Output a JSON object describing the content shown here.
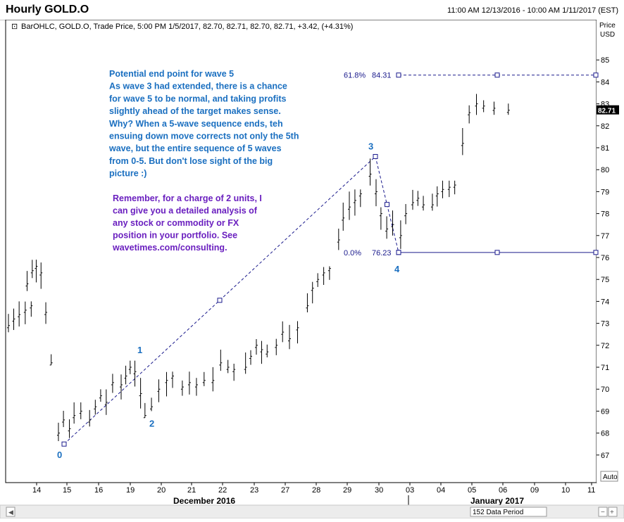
{
  "window": {
    "title": "Hourly GOLD.O",
    "date_range": "11:00 AM 12/13/2016 - 10:00 AM 1/11/2017 (EST)"
  },
  "info_line": "BarOHLC, GOLD.O, Trade Price, 5:00 PM 1/5/2017, 82.70, 82.71, 82.70, 82.71, +3.42, (+4.31%)",
  "price_axis": {
    "label_1": "Price",
    "label_2": "USD",
    "current_price": "82.71",
    "auto_label": "Auto"
  },
  "bottom": {
    "data_period": "152 Data Period"
  },
  "colors": {
    "bars": "#000000",
    "annotation_blue": "#1a6fc0",
    "promo_purple": "#6a1fbf",
    "fib_line": "#1a1a8c"
  },
  "annotations": {
    "commentary": [
      "Potential end point for wave 5",
      "As wave 3 had extended, there is a chance",
      "for wave 5 to be normal, and taking profits",
      "slightly ahead of the target makes sense.",
      "Why? When a 5-wave sequence ends, teh",
      "ensuing down move corrects not only the 5th",
      "wave, but the entire sequence of 5 waves",
      "from 0-5. But don't lose sight of the big",
      "picture :)"
    ],
    "promo": [
      "Remember, for a charge of 2 units, I",
      "can give you a detailed analysis of",
      "any stock or commodity or FX",
      "position in your portfolio. See",
      "wavetimes.com/consulting."
    ],
    "wave_labels": [
      {
        "label": "0",
        "day": "15",
        "price": 67.5
      },
      {
        "label": "1",
        "day": "19",
        "price": 71.25
      },
      {
        "label": "2",
        "day": "20",
        "price": 69.0
      },
      {
        "label": "3",
        "day": "30",
        "price": 80.6
      },
      {
        "label": "4",
        "day": "03",
        "price": 76.23
      }
    ],
    "fib_levels": [
      {
        "pct": "61.8%",
        "value": "84.31",
        "price": 84.31
      },
      {
        "pct": "0.0%",
        "value": "76.23",
        "price": 76.23
      }
    ]
  },
  "chart_data": {
    "type": "ohlc",
    "title": "Hourly GOLD.O",
    "ylabel": "Price USD",
    "ylim": [
      66.0,
      86.0
    ],
    "y_ticks": [
      67,
      68,
      69,
      70,
      71,
      72,
      73,
      74,
      75,
      76,
      77,
      78,
      79,
      80,
      81,
      82,
      83,
      84,
      85
    ],
    "x_tick_labels": [
      "14",
      "15",
      "16",
      "19",
      "20",
      "21",
      "22",
      "23",
      "27",
      "28",
      "29",
      "30",
      "03",
      "04",
      "05",
      "06",
      "09",
      "10",
      "11"
    ],
    "month_labels": [
      "December 2016",
      "January 2017"
    ],
    "session_ranges": [
      {
        "day": "13",
        "low": 72.5,
        "high": 74.0
      },
      {
        "day": "14",
        "low": 71.1,
        "high": 75.9
      },
      {
        "day": "15",
        "low": 67.5,
        "high": 69.4
      },
      {
        "day": "16",
        "low": 68.3,
        "high": 70.7
      },
      {
        "day": "19",
        "low": 68.7,
        "high": 71.3
      },
      {
        "day": "20",
        "low": 69.0,
        "high": 70.8
      },
      {
        "day": "21",
        "low": 69.7,
        "high": 70.8
      },
      {
        "day": "22",
        "low": 69.9,
        "high": 71.8
      },
      {
        "day": "23",
        "low": 70.7,
        "high": 72.3
      },
      {
        "day": "27",
        "low": 71.5,
        "high": 73.1
      },
      {
        "day": "28",
        "low": 73.5,
        "high": 75.6
      },
      {
        "day": "29",
        "low": 76.3,
        "high": 79.1
      },
      {
        "day": "30",
        "low": 76.8,
        "high": 80.6
      },
      {
        "day": "03",
        "low": 76.23,
        "high": 79.1
      },
      {
        "day": "04",
        "low": 77.9,
        "high": 79.5
      },
      {
        "day": "05",
        "low": 80.5,
        "high": 83.5
      },
      {
        "day": "06",
        "low": 82.5,
        "high": 83.1
      }
    ],
    "last_price": 82.71
  }
}
